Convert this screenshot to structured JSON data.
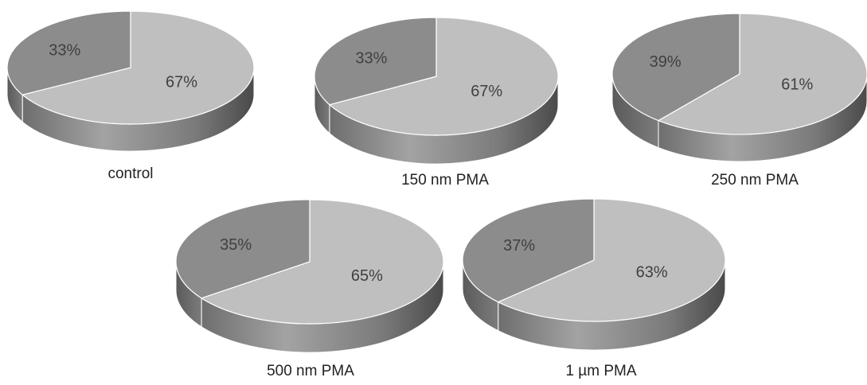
{
  "colors": {
    "small_slice": "#8c8c8c",
    "large_slice": "#bfbfbf",
    "percent_text": "#404040",
    "caption_text": "#222222"
  },
  "chart_data": [
    {
      "type": "pie",
      "title": "control",
      "slices": [
        {
          "label": "33%",
          "value": 33
        },
        {
          "label": "67%",
          "value": 67
        }
      ]
    },
    {
      "type": "pie",
      "title": "150 nm PMA",
      "slices": [
        {
          "label": "33%",
          "value": 33
        },
        {
          "label": "67%",
          "value": 67
        }
      ]
    },
    {
      "type": "pie",
      "title": "250 nm PMA",
      "slices": [
        {
          "label": "39%",
          "value": 39
        },
        {
          "label": "61%",
          "value": 61
        }
      ]
    },
    {
      "type": "pie",
      "title": "500 nm PMA",
      "slices": [
        {
          "label": "35%",
          "value": 35
        },
        {
          "label": "65%",
          "value": 65
        }
      ]
    },
    {
      "type": "pie",
      "title": "1 µm PMA",
      "slices": [
        {
          "label": "37%",
          "value": 37
        },
        {
          "label": "63%",
          "value": 63
        }
      ]
    }
  ]
}
